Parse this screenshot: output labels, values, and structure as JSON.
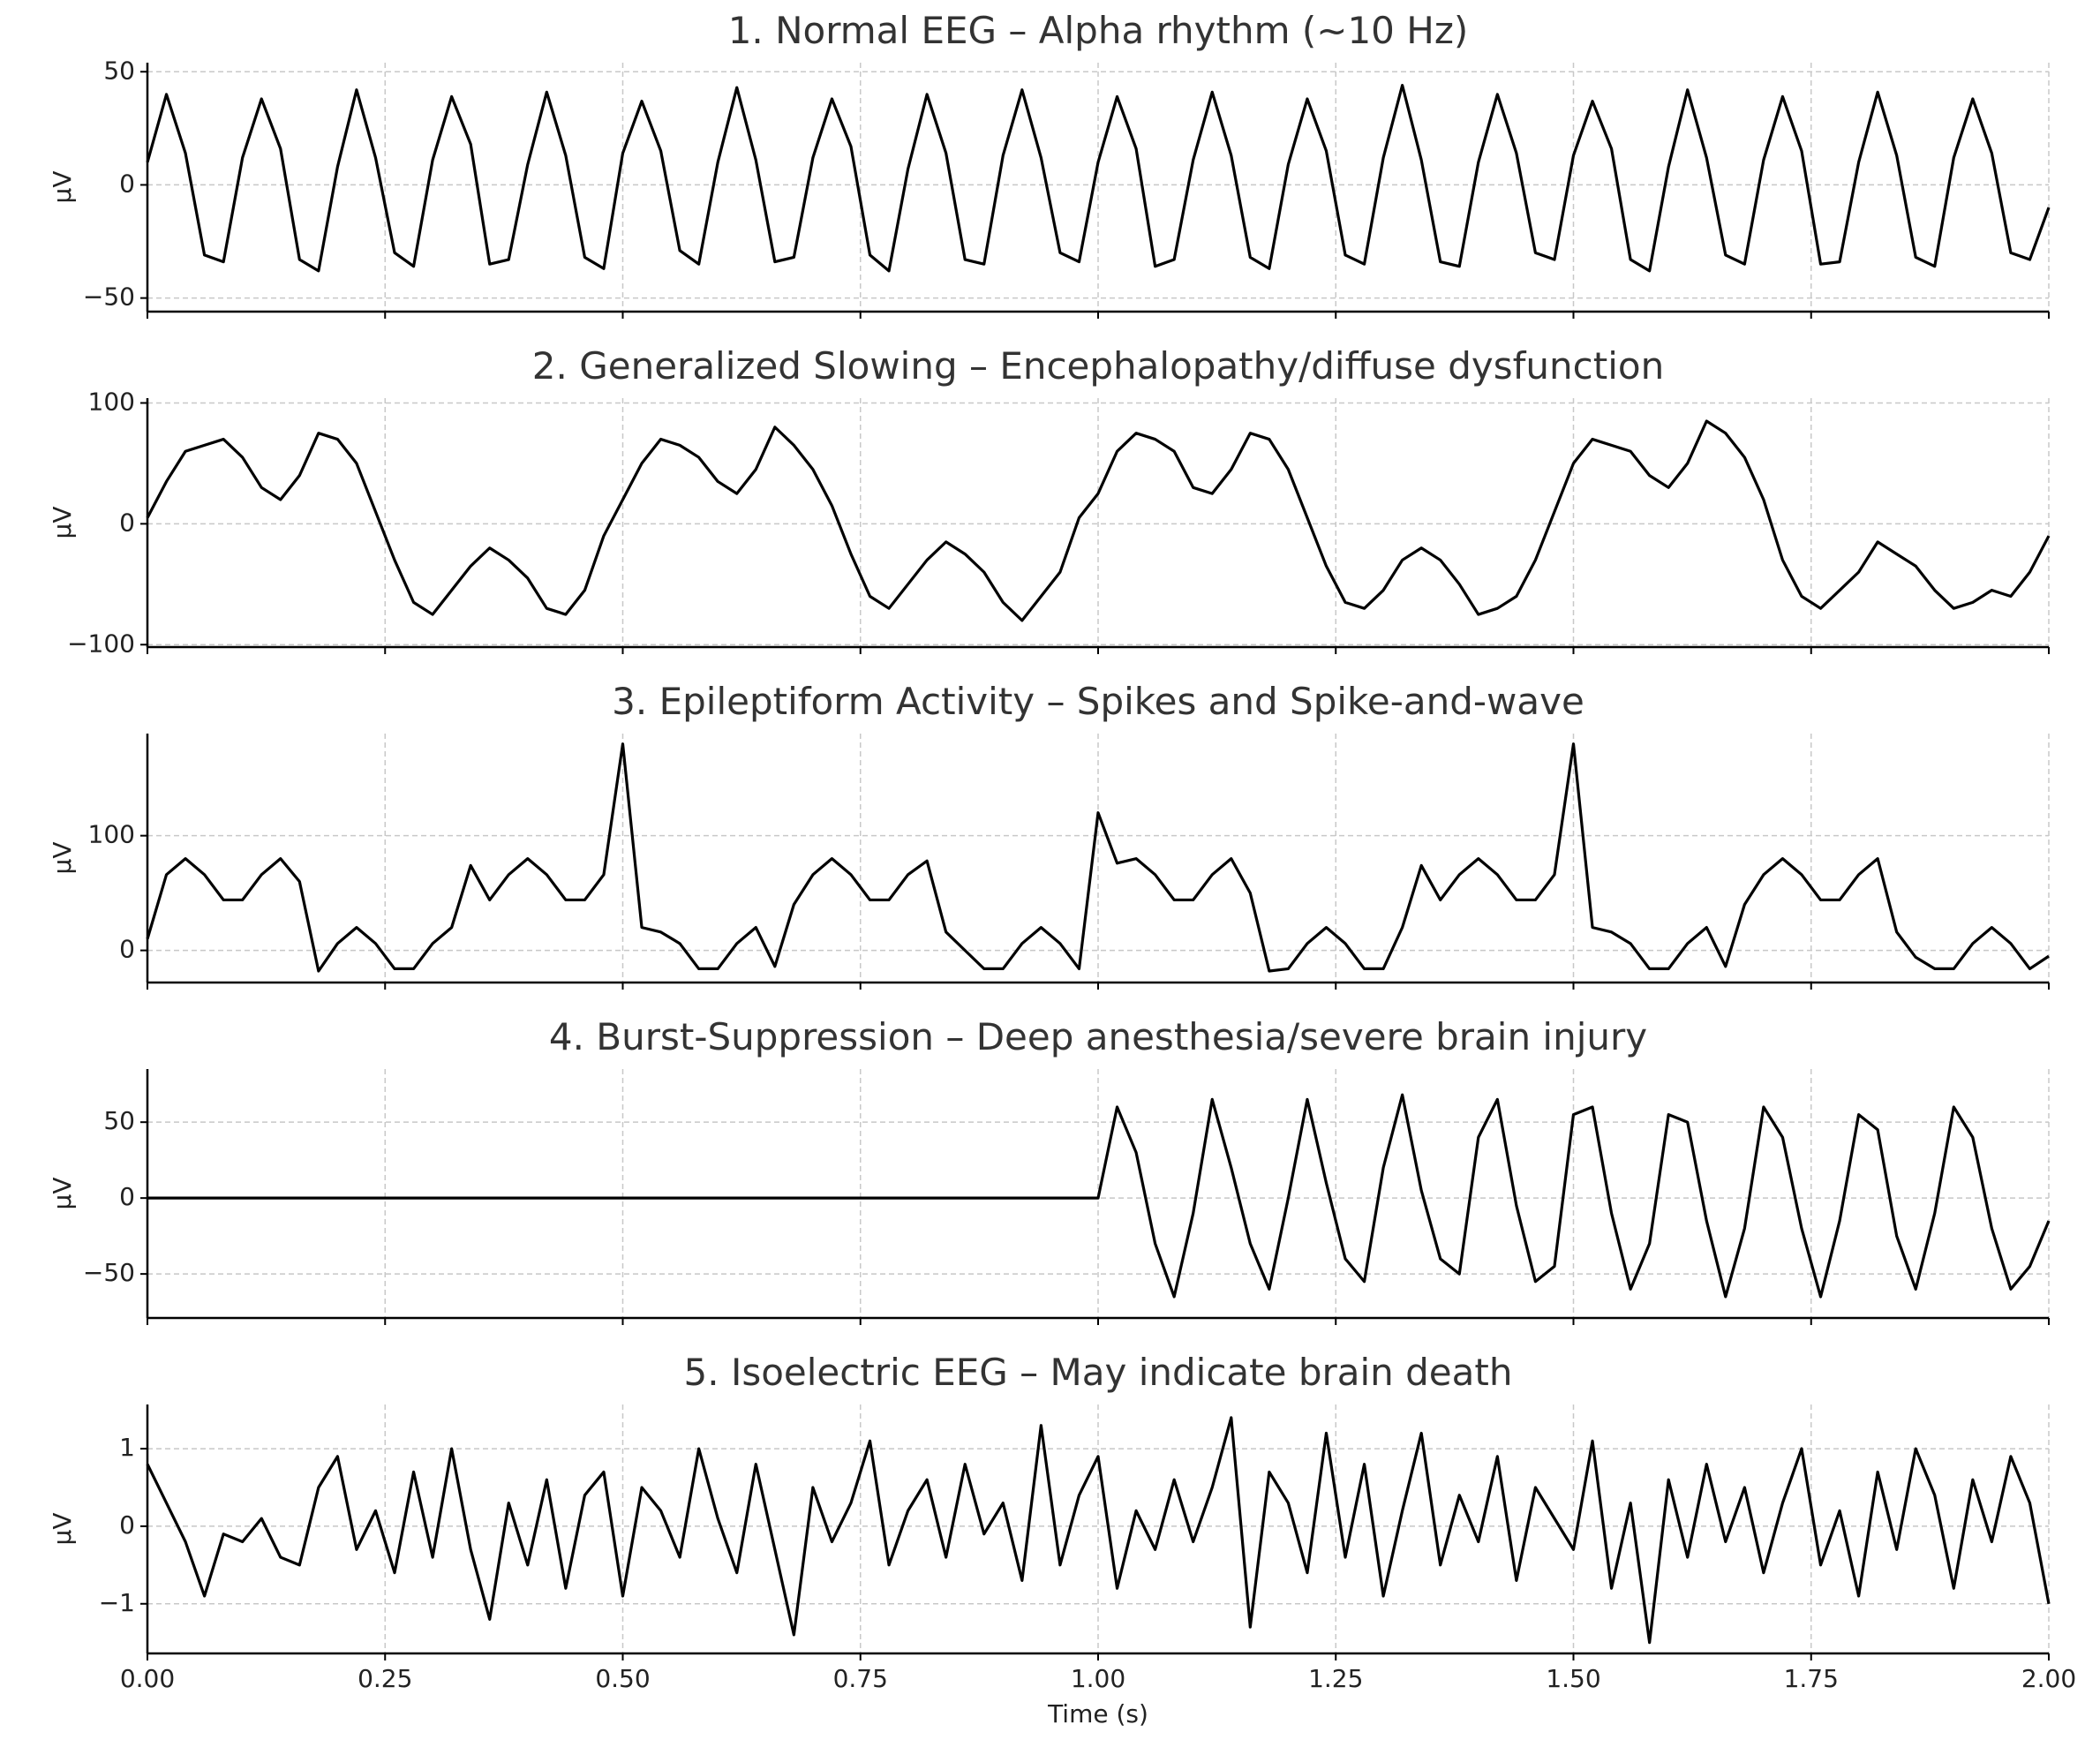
{
  "chart_data": [
    {
      "type": "line",
      "title": "1. Normal EEG – Alpha rhythm (~10 Hz)",
      "ylabel": "μV",
      "color": "#000000",
      "grid": true,
      "x": [
        0,
        0.02,
        0.04,
        0.06,
        0.08,
        0.1,
        0.12,
        0.14,
        0.16,
        0.18,
        0.2,
        0.22,
        0.24,
        0.26,
        0.28,
        0.3,
        0.32,
        0.34,
        0.36,
        0.38,
        0.4,
        0.42,
        0.44,
        0.46,
        0.48,
        0.5,
        0.52,
        0.54,
        0.56,
        0.58,
        0.6,
        0.62,
        0.64,
        0.66,
        0.68,
        0.7,
        0.72,
        0.74,
        0.76,
        0.78,
        0.8,
        0.82,
        0.84,
        0.86,
        0.88,
        0.9,
        0.92,
        0.94,
        0.96,
        0.98,
        1,
        1.02,
        1.04,
        1.06,
        1.08,
        1.1,
        1.12,
        1.14,
        1.16,
        1.18,
        1.2,
        1.22,
        1.24,
        1.26,
        1.28,
        1.3,
        1.32,
        1.34,
        1.36,
        1.38,
        1.4,
        1.42,
        1.44,
        1.46,
        1.48,
        1.5,
        1.52,
        1.54,
        1.56,
        1.58,
        1.6,
        1.62,
        1.64,
        1.66,
        1.68,
        1.7,
        1.72,
        1.74,
        1.76,
        1.78,
        1.8,
        1.82,
        1.84,
        1.86,
        1.88,
        1.9,
        1.92,
        1.94,
        1.96,
        1.98,
        2
      ],
      "values": [
        10,
        40,
        14,
        -31,
        -34,
        12,
        38,
        16,
        -33,
        -38,
        8,
        42,
        12,
        -30,
        -36,
        11,
        39,
        18,
        -35,
        -33,
        9,
        41,
        13,
        -32,
        -37,
        14,
        37,
        15,
        -29,
        -35,
        10,
        43,
        11,
        -34,
        -32,
        12,
        38,
        17,
        -31,
        -38,
        7,
        40,
        14,
        -33,
        -35,
        13,
        42,
        12,
        -30,
        -34,
        10,
        39,
        16,
        -36,
        -33,
        11,
        41,
        13,
        -32,
        -37,
        9,
        38,
        15,
        -31,
        -35,
        12,
        44,
        11,
        -34,
        -36,
        10,
        40,
        14,
        -30,
        -33,
        13,
        37,
        16,
        -33,
        -38,
        8,
        42,
        12,
        -31,
        -35,
        11,
        39,
        15,
        -35,
        -34,
        10,
        41,
        13,
        -32,
        -36,
        12,
        38,
        14,
        -30,
        -33,
        -10
      ],
      "xlim": [
        0,
        2
      ],
      "xticks": [
        0,
        0.25,
        0.5,
        0.75,
        1,
        1.25,
        1.5,
        1.75,
        2
      ],
      "ylim": [
        -56,
        54
      ],
      "yticks": [
        {
          "value": -50,
          "label": "−50"
        },
        0,
        50
      ]
    },
    {
      "type": "line",
      "title": "2. Generalized Slowing – Encephalopathy/diffuse dysfunction",
      "ylabel": "μV",
      "color": "#000000",
      "grid": true,
      "x": [
        0,
        0.02,
        0.04,
        0.06,
        0.08,
        0.1,
        0.12,
        0.14,
        0.16,
        0.18,
        0.2,
        0.22,
        0.24,
        0.26,
        0.28,
        0.3,
        0.32,
        0.34,
        0.36,
        0.38,
        0.4,
        0.42,
        0.44,
        0.46,
        0.48,
        0.5,
        0.52,
        0.54,
        0.56,
        0.58,
        0.6,
        0.62,
        0.64,
        0.66,
        0.68,
        0.7,
        0.72,
        0.74,
        0.76,
        0.78,
        0.8,
        0.82,
        0.84,
        0.86,
        0.88,
        0.9,
        0.92,
        0.94,
        0.96,
        0.98,
        1,
        1.02,
        1.04,
        1.06,
        1.08,
        1.1,
        1.12,
        1.14,
        1.16,
        1.18,
        1.2,
        1.22,
        1.24,
        1.26,
        1.28,
        1.3,
        1.32,
        1.34,
        1.36,
        1.38,
        1.4,
        1.42,
        1.44,
        1.46,
        1.48,
        1.5,
        1.52,
        1.54,
        1.56,
        1.58,
        1.6,
        1.62,
        1.64,
        1.66,
        1.68,
        1.7,
        1.72,
        1.74,
        1.76,
        1.78,
        1.8,
        1.82,
        1.84,
        1.86,
        1.88,
        1.9,
        1.92,
        1.94,
        1.96,
        1.98,
        2
      ],
      "values": [
        5,
        35,
        60,
        65,
        70,
        55,
        30,
        20,
        40,
        75,
        70,
        50,
        10,
        -30,
        -65,
        -75,
        -55,
        -35,
        -20,
        -30,
        -45,
        -70,
        -75,
        -55,
        -10,
        20,
        50,
        70,
        65,
        55,
        35,
        25,
        45,
        80,
        65,
        45,
        15,
        -25,
        -60,
        -70,
        -50,
        -30,
        -15,
        -25,
        -40,
        -65,
        -80,
        -60,
        -40,
        5,
        25,
        60,
        75,
        70,
        60,
        30,
        25,
        45,
        75,
        70,
        45,
        5,
        -35,
        -65,
        -70,
        -55,
        -30,
        -20,
        -30,
        -50,
        -75,
        -70,
        -60,
        -30,
        10,
        50,
        70,
        65,
        60,
        40,
        30,
        50,
        85,
        75,
        55,
        20,
        -30,
        -60,
        -70,
        -55,
        -40,
        -15,
        -25,
        -35,
        -55,
        -70,
        -65,
        -55,
        -60,
        -40,
        -10
      ],
      "xlim": [
        0,
        2
      ],
      "xticks": [
        0,
        0.25,
        0.5,
        0.75,
        1,
        1.25,
        1.5,
        1.75,
        2
      ],
      "ylim": [
        -102,
        104
      ],
      "yticks": [
        {
          "value": -100,
          "label": "−100"
        },
        0,
        100
      ]
    },
    {
      "type": "line",
      "title": "3. Epileptiform Activity – Spikes and Spike-and-wave",
      "ylabel": "μV",
      "color": "#000000",
      "grid": true,
      "x": [
        0,
        0.02,
        0.04,
        0.06,
        0.08,
        0.1,
        0.12,
        0.14,
        0.16,
        0.18,
        0.2,
        0.22,
        0.24,
        0.26,
        0.28,
        0.3,
        0.32,
        0.34,
        0.36,
        0.38,
        0.4,
        0.42,
        0.44,
        0.46,
        0.48,
        0.5,
        0.52,
        0.54,
        0.56,
        0.58,
        0.6,
        0.62,
        0.64,
        0.66,
        0.68,
        0.7,
        0.72,
        0.74,
        0.76,
        0.78,
        0.8,
        0.82,
        0.84,
        0.86,
        0.88,
        0.9,
        0.92,
        0.94,
        0.96,
        0.98,
        1,
        1.02,
        1.04,
        1.06,
        1.08,
        1.1,
        1.12,
        1.14,
        1.16,
        1.18,
        1.2,
        1.22,
        1.24,
        1.26,
        1.28,
        1.3,
        1.32,
        1.34,
        1.36,
        1.38,
        1.4,
        1.42,
        1.44,
        1.46,
        1.48,
        1.5,
        1.52,
        1.54,
        1.56,
        1.58,
        1.6,
        1.62,
        1.64,
        1.66,
        1.68,
        1.7,
        1.72,
        1.74,
        1.76,
        1.78,
        1.8,
        1.82,
        1.84,
        1.86,
        1.88,
        1.9,
        1.92,
        1.94,
        1.96,
        1.98,
        2
      ],
      "values": [
        10,
        66,
        80,
        66,
        44,
        44,
        66,
        80,
        60,
        -18,
        6,
        20,
        6,
        -16,
        -16,
        6,
        20,
        74,
        44,
        66,
        80,
        66,
        44,
        44,
        66,
        180,
        20,
        16,
        6,
        -16,
        -16,
        6,
        20,
        -14,
        40,
        66,
        80,
        66,
        44,
        44,
        66,
        78,
        16,
        0,
        -16,
        -16,
        6,
        20,
        6,
        -16,
        120,
        76,
        80,
        66,
        44,
        44,
        66,
        80,
        50,
        -18,
        -16,
        6,
        20,
        6,
        -16,
        -16,
        20,
        74,
        44,
        66,
        80,
        66,
        44,
        44,
        66,
        180,
        20,
        16,
        6,
        -16,
        -16,
        6,
        20,
        -14,
        40,
        66,
        80,
        66,
        44,
        44,
        66,
        80,
        16,
        -6,
        -16,
        -16,
        6,
        20,
        6,
        -16,
        -5
      ],
      "xlim": [
        0,
        2
      ],
      "xticks": [
        0,
        0.25,
        0.5,
        0.75,
        1,
        1.25,
        1.5,
        1.75,
        2
      ],
      "ylim": [
        -28,
        189
      ],
      "yticks": [
        0,
        100
      ]
    },
    {
      "type": "line",
      "title": "4. Burst-Suppression – Deep anesthesia/severe brain injury",
      "ylabel": "μV",
      "color": "#000000",
      "grid": true,
      "x": [
        0,
        0.02,
        0.04,
        0.06,
        0.08,
        0.1,
        0.12,
        0.14,
        0.16,
        0.18,
        0.2,
        0.22,
        0.24,
        0.26,
        0.28,
        0.3,
        0.32,
        0.34,
        0.36,
        0.38,
        0.4,
        0.42,
        0.44,
        0.46,
        0.48,
        0.5,
        0.52,
        0.54,
        0.56,
        0.58,
        0.6,
        0.62,
        0.64,
        0.66,
        0.68,
        0.7,
        0.72,
        0.74,
        0.76,
        0.78,
        0.8,
        0.82,
        0.84,
        0.86,
        0.88,
        0.9,
        0.92,
        0.94,
        0.96,
        0.98,
        1,
        1.02,
        1.04,
        1.06,
        1.08,
        1.1,
        1.12,
        1.14,
        1.16,
        1.18,
        1.2,
        1.22,
        1.24,
        1.26,
        1.28,
        1.3,
        1.32,
        1.34,
        1.36,
        1.38,
        1.4,
        1.42,
        1.44,
        1.46,
        1.48,
        1.5,
        1.52,
        1.54,
        1.56,
        1.58,
        1.6,
        1.62,
        1.64,
        1.66,
        1.68,
        1.7,
        1.72,
        1.74,
        1.76,
        1.78,
        1.8,
        1.82,
        1.84,
        1.86,
        1.88,
        1.9,
        1.92,
        1.94,
        1.96,
        1.98,
        2
      ],
      "values": [
        0,
        0,
        0,
        0,
        0,
        0,
        0,
        0,
        0,
        0,
        0,
        0,
        0,
        0,
        0,
        0,
        0,
        0,
        0,
        0,
        0,
        0,
        0,
        0,
        0,
        0,
        0,
        0,
        0,
        0,
        0,
        0,
        0,
        0,
        0,
        0,
        0,
        0,
        0,
        0,
        0,
        0,
        0,
        0,
        0,
        0,
        0,
        0,
        0,
        0,
        0,
        60,
        30,
        -30,
        -65,
        -10,
        65,
        20,
        -30,
        -60,
        0,
        65,
        10,
        -40,
        -55,
        20,
        68,
        5,
        -40,
        -50,
        40,
        65,
        -5,
        -55,
        -45,
        55,
        60,
        -10,
        -60,
        -30,
        55,
        50,
        -15,
        -65,
        -20,
        60,
        40,
        -20,
        -65,
        -15,
        55,
        45,
        -25,
        -60,
        -10,
        60,
        40,
        -20,
        -60,
        -45,
        -15
      ],
      "xlim": [
        0,
        2
      ],
      "xticks": [
        0,
        0.25,
        0.5,
        0.75,
        1,
        1.25,
        1.5,
        1.75,
        2
      ],
      "ylim": [
        -79,
        85
      ],
      "yticks": [
        {
          "value": -50,
          "label": "−50"
        },
        0,
        50
      ]
    },
    {
      "type": "line",
      "title": "5. Isoelectric EEG – May indicate brain death",
      "ylabel": "μV",
      "xlabel": "Time (s)",
      "color": "#000000",
      "grid": true,
      "x": [
        0,
        0.02,
        0.04,
        0.06,
        0.08,
        0.1,
        0.12,
        0.14,
        0.16,
        0.18,
        0.2,
        0.22,
        0.24,
        0.26,
        0.28,
        0.3,
        0.32,
        0.34,
        0.36,
        0.38,
        0.4,
        0.42,
        0.44,
        0.46,
        0.48,
        0.5,
        0.52,
        0.54,
        0.56,
        0.58,
        0.6,
        0.62,
        0.64,
        0.66,
        0.68,
        0.7,
        0.72,
        0.74,
        0.76,
        0.78,
        0.8,
        0.82,
        0.84,
        0.86,
        0.88,
        0.9,
        0.92,
        0.94,
        0.96,
        0.98,
        1,
        1.02,
        1.04,
        1.06,
        1.08,
        1.1,
        1.12,
        1.14,
        1.16,
        1.18,
        1.2,
        1.22,
        1.24,
        1.26,
        1.28,
        1.3,
        1.32,
        1.34,
        1.36,
        1.38,
        1.4,
        1.42,
        1.44,
        1.46,
        1.48,
        1.5,
        1.52,
        1.54,
        1.56,
        1.58,
        1.6,
        1.62,
        1.64,
        1.66,
        1.68,
        1.7,
        1.72,
        1.74,
        1.76,
        1.78,
        1.8,
        1.82,
        1.84,
        1.86,
        1.88,
        1.9,
        1.92,
        1.94,
        1.96,
        1.98,
        2
      ],
      "values": [
        0.8,
        0.3,
        -0.2,
        -0.9,
        -0.1,
        -0.2,
        0.1,
        -0.4,
        -0.5,
        0.5,
        0.9,
        -0.3,
        0.2,
        -0.6,
        0.7,
        -0.4,
        1.0,
        -0.3,
        -1.2,
        0.3,
        -0.5,
        0.6,
        -0.8,
        0.4,
        0.7,
        -0.9,
        0.5,
        0.2,
        -0.4,
        1.0,
        0.1,
        -0.6,
        0.8,
        -0.3,
        -1.4,
        0.5,
        -0.2,
        0.3,
        1.1,
        -0.5,
        0.2,
        0.6,
        -0.4,
        0.8,
        -0.1,
        0.3,
        -0.7,
        1.3,
        -0.5,
        0.4,
        0.9,
        -0.8,
        0.2,
        -0.3,
        0.6,
        -0.2,
        0.5,
        1.4,
        -1.3,
        0.7,
        0.3,
        -0.6,
        1.2,
        -0.4,
        0.8,
        -0.9,
        0.2,
        1.2,
        -0.5,
        0.4,
        -0.2,
        0.9,
        -0.7,
        0.5,
        0.1,
        -0.3,
        1.1,
        -0.8,
        0.3,
        -1.5,
        0.6,
        -0.4,
        0.8,
        -0.2,
        0.5,
        -0.6,
        0.3,
        1.0,
        -0.5,
        0.2,
        -0.9,
        0.7,
        -0.3,
        1.0,
        0.4,
        -0.8,
        0.6,
        -0.2,
        0.9,
        0.3,
        -1.0
      ],
      "xlim": [
        0,
        2
      ],
      "xticks": [
        {
          "value": 0,
          "label": "0.00"
        },
        {
          "value": 0.25,
          "label": "0.25"
        },
        {
          "value": 0.5,
          "label": "0.50"
        },
        {
          "value": 0.75,
          "label": "0.75"
        },
        {
          "value": 1,
          "label": "1.00"
        },
        {
          "value": 1.25,
          "label": "1.25"
        },
        {
          "value": 1.5,
          "label": "1.50"
        },
        {
          "value": 1.75,
          "label": "1.75"
        },
        {
          "value": 2,
          "label": "2.00"
        }
      ],
      "ylim": [
        -1.64,
        1.57
      ],
      "yticks": [
        {
          "value": -1,
          "label": "−1"
        },
        0,
        1
      ]
    }
  ]
}
